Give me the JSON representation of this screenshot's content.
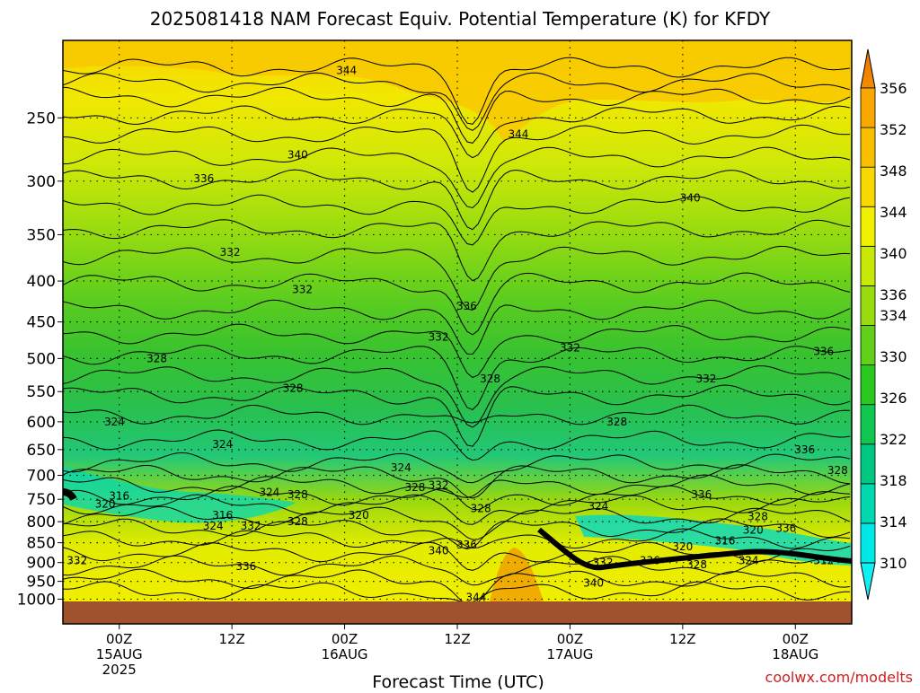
{
  "chart_data": {
    "type": "heatmap",
    "title": "2025081418 NAM Forecast Equiv. Potential Temperature (K) for KFDY",
    "xlabel": "Forecast Time (UTC)",
    "ylabel": "",
    "credit": "coolwx.com/modelts",
    "x_ticks": [
      {
        "hour": 6,
        "lines": [
          "00Z",
          "15AUG",
          "2025"
        ]
      },
      {
        "hour": 18,
        "lines": [
          "12Z"
        ]
      },
      {
        "hour": 30,
        "lines": [
          "00Z",
          "16AUG"
        ]
      },
      {
        "hour": 42,
        "lines": [
          "12Z"
        ]
      },
      {
        "hour": 54,
        "lines": [
          "00Z",
          "17AUG"
        ]
      },
      {
        "hour": 66,
        "lines": [
          "12Z"
        ]
      },
      {
        "hour": 78,
        "lines": [
          "00Z",
          "18AUG"
        ]
      }
    ],
    "xlim_hours": [
      0,
      84
    ],
    "y_ticks_hpa": [
      250,
      300,
      350,
      400,
      450,
      500,
      550,
      600,
      650,
      700,
      750,
      800,
      850,
      900,
      950,
      1000
    ],
    "y_tick_labels": [
      "250",
      "300",
      "350",
      "400",
      "450",
      "500",
      "550",
      "600",
      "650",
      "700",
      "750",
      "800",
      "850",
      "900",
      "950",
      "1000"
    ],
    "ylim_hpa": [
      200,
      1025
    ],
    "y_scale": "log-pressure",
    "grid": true,
    "colorbar": {
      "levels": [
        310,
        314,
        318,
        322,
        326,
        330,
        334,
        336,
        340,
        344,
        348,
        352,
        356
      ],
      "labels": [
        "310",
        "314",
        "318",
        "322",
        "326",
        "330",
        "334",
        "336",
        "340",
        "344",
        "348",
        "352",
        "356"
      ],
      "colors": [
        "#00e8e8",
        "#00d8b0",
        "#00c880",
        "#10c850",
        "#28c81e",
        "#60d018",
        "#98dc10",
        "#c8e808",
        "#f0f000",
        "#f8d800",
        "#f8c000",
        "#f8a800",
        "#f08c00"
      ],
      "extend": "both"
    },
    "contour_interval_K": 2,
    "contour_labels": [
      {
        "text": "344",
        "hour": 30.2,
        "hpa": 218
      },
      {
        "text": "344",
        "hour": 48.5,
        "hpa": 262
      },
      {
        "text": "340",
        "hour": 25.0,
        "hpa": 278
      },
      {
        "text": "340",
        "hour": 66.8,
        "hpa": 315
      },
      {
        "text": "336",
        "hour": 15.0,
        "hpa": 298
      },
      {
        "text": "332",
        "hour": 17.8,
        "hpa": 368
      },
      {
        "text": "332",
        "hour": 25.5,
        "hpa": 410
      },
      {
        "text": "336",
        "hour": 43.0,
        "hpa": 430
      },
      {
        "text": "332",
        "hour": 40.0,
        "hpa": 470
      },
      {
        "text": "332",
        "hour": 54.0,
        "hpa": 485
      },
      {
        "text": "332",
        "hour": 68.5,
        "hpa": 530
      },
      {
        "text": "336",
        "hour": 81.0,
        "hpa": 490
      },
      {
        "text": "328",
        "hour": 10.0,
        "hpa": 500
      },
      {
        "text": "328",
        "hour": 24.5,
        "hpa": 545
      },
      {
        "text": "328",
        "hour": 45.5,
        "hpa": 530
      },
      {
        "text": "328",
        "hour": 59.0,
        "hpa": 600
      },
      {
        "text": "324",
        "hour": 5.5,
        "hpa": 600
      },
      {
        "text": "324",
        "hour": 17.0,
        "hpa": 640
      },
      {
        "text": "324",
        "hour": 36.0,
        "hpa": 685
      },
      {
        "text": "336",
        "hour": 79.0,
        "hpa": 650
      },
      {
        "text": "328",
        "hour": 82.5,
        "hpa": 690
      },
      {
        "text": "316",
        "hour": 6.0,
        "hpa": 743
      },
      {
        "text": "324",
        "hour": 22.0,
        "hpa": 735
      },
      {
        "text": "328",
        "hour": 25.0,
        "hpa": 740
      },
      {
        "text": "328",
        "hour": 37.5,
        "hpa": 725
      },
      {
        "text": "332",
        "hour": 40.0,
        "hpa": 720
      },
      {
        "text": "320",
        "hour": 4.5,
        "hpa": 760
      },
      {
        "text": "316",
        "hour": 17.0,
        "hpa": 785
      },
      {
        "text": "324",
        "hour": 16.0,
        "hpa": 810
      },
      {
        "text": "332",
        "hour": 20.0,
        "hpa": 810
      },
      {
        "text": "328",
        "hour": 25.0,
        "hpa": 800
      },
      {
        "text": "320",
        "hour": 31.5,
        "hpa": 785
      },
      {
        "text": "328",
        "hour": 44.5,
        "hpa": 770
      },
      {
        "text": "324",
        "hour": 57.0,
        "hpa": 765
      },
      {
        "text": "336",
        "hour": 68.0,
        "hpa": 740
      },
      {
        "text": "328",
        "hour": 74.0,
        "hpa": 788
      },
      {
        "text": "336",
        "hour": 77.0,
        "hpa": 815
      },
      {
        "text": "320",
        "hour": 73.5,
        "hpa": 820
      },
      {
        "text": "316",
        "hour": 70.5,
        "hpa": 845
      },
      {
        "text": "320",
        "hour": 66.0,
        "hpa": 860
      },
      {
        "text": "312",
        "hour": 81.0,
        "hpa": 895
      },
      {
        "text": "324",
        "hour": 73.0,
        "hpa": 895
      },
      {
        "text": "328",
        "hour": 67.5,
        "hpa": 905
      },
      {
        "text": "336",
        "hour": 62.5,
        "hpa": 895
      },
      {
        "text": "332",
        "hour": 57.5,
        "hpa": 900
      },
      {
        "text": "336",
        "hour": 43.0,
        "hpa": 855
      },
      {
        "text": "340",
        "hour": 40.0,
        "hpa": 870
      },
      {
        "text": "332",
        "hour": 1.5,
        "hpa": 895
      },
      {
        "text": "336",
        "hour": 19.5,
        "hpa": 910
      },
      {
        "text": "340",
        "hour": 56.5,
        "hpa": 955
      },
      {
        "text": "344",
        "hour": 44.0,
        "hpa": 995
      }
    ]
  }
}
